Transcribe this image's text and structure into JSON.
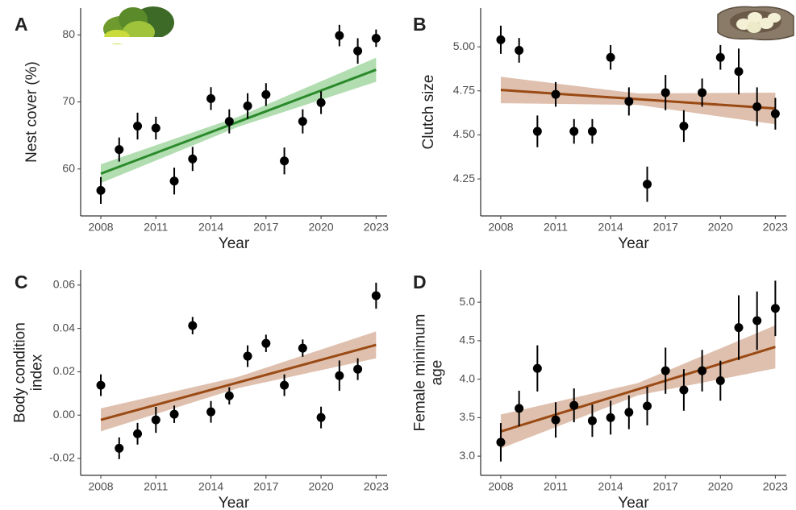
{
  "chart_data": [
    {
      "type": "scatter",
      "panel_label": "A",
      "xlabel": "Year",
      "ylabel": [
        "Nest cover (%)"
      ],
      "x": [
        2008,
        2009,
        2010,
        2011,
        2012,
        2013,
        2014,
        2015,
        2016,
        2017,
        2018,
        2019,
        2020,
        2021,
        2022,
        2023
      ],
      "values": [
        56.8,
        62.9,
        66.4,
        66.1,
        58.2,
        61.5,
        70.5,
        67.1,
        69.4,
        71.1,
        61.2,
        67.1,
        69.9,
        79.9,
        77.6,
        79.5
      ],
      "errors": [
        2.0,
        1.8,
        2.0,
        1.7,
        2.0,
        1.8,
        1.7,
        1.8,
        1.9,
        1.7,
        2.0,
        1.8,
        1.7,
        1.6,
        1.9,
        1.3
      ],
      "color": "#000000",
      "fit": {
        "x": [
          2008,
          2015.5,
          2023
        ],
        "y": [
          59.3,
          67.05,
          74.8
        ],
        "lower": [
          57.9,
          66.3,
          73.0
        ],
        "upper": [
          60.7,
          67.8,
          76.6
        ],
        "color": "#2a8a2a",
        "band_color": "#a3d7a3"
      },
      "xlim": [
        2006.9,
        2023.6
      ],
      "ylim": [
        53,
        84
      ],
      "xticks": [
        2008,
        2011,
        2014,
        2017,
        2020,
        2023
      ],
      "yticks": [
        60,
        70,
        80
      ]
    },
    {
      "type": "scatter",
      "panel_label": "B",
      "xlabel": "Year",
      "ylabel": [
        "Clutch size"
      ],
      "x": [
        2008,
        2009,
        2010,
        2011,
        2012,
        2013,
        2014,
        2015,
        2016,
        2017,
        2018,
        2019,
        2020,
        2021,
        2022,
        2023
      ],
      "values": [
        5.04,
        4.98,
        4.52,
        4.73,
        4.52,
        4.52,
        4.94,
        4.69,
        4.22,
        4.74,
        4.55,
        4.74,
        4.94,
        4.86,
        4.66,
        4.62
      ],
      "errors": [
        0.08,
        0.07,
        0.09,
        0.07,
        0.07,
        0.07,
        0.07,
        0.08,
        0.1,
        0.1,
        0.09,
        0.08,
        0.07,
        0.13,
        0.11,
        0.09
      ],
      "color": "#000000",
      "fit": {
        "x": [
          2008,
          2015.5,
          2023
        ],
        "y": [
          4.755,
          4.7025,
          4.65
        ],
        "lower": [
          4.68,
          4.67,
          4.56
        ],
        "upper": [
          4.83,
          4.735,
          4.74
        ],
        "color": "#9a4a14",
        "band_color": "#d9b5a0"
      },
      "xlim": [
        2006.9,
        2023.6
      ],
      "ylim": [
        4.04,
        5.22
      ],
      "xticks": [
        2008,
        2011,
        2014,
        2017,
        2020,
        2023
      ],
      "yticks": [
        {
          "value": 4.25,
          "label": "4.25"
        },
        {
          "value": 4.5,
          "label": "4.50"
        },
        {
          "value": 4.75,
          "label": "4.75"
        },
        {
          "value": 5,
          "label": "5.00"
        }
      ]
    },
    {
      "type": "scatter",
      "panel_label": "C",
      "xlabel": "Year",
      "ylabel": [
        "Body condition",
        "index"
      ],
      "x": [
        2008,
        2009,
        2010,
        2011,
        2012,
        2013,
        2014,
        2015,
        2016,
        2017,
        2018,
        2019,
        2020,
        2021,
        2022,
        2023
      ],
      "values": [
        0.0138,
        -0.0153,
        -0.0086,
        -0.0022,
        0.0004,
        0.0413,
        0.0015,
        0.0089,
        0.0272,
        0.0331,
        0.0138,
        0.0309,
        -0.0011,
        0.0182,
        0.0212,
        0.0551
      ],
      "errors": [
        0.005,
        0.005,
        0.005,
        0.006,
        0.004,
        0.004,
        0.005,
        0.004,
        0.005,
        0.004,
        0.005,
        0.004,
        0.005,
        0.007,
        0.005,
        0.006
      ],
      "color": "#000000",
      "fit": {
        "x": [
          2008,
          2015.5,
          2023
        ],
        "y": [
          -0.0022,
          0.0151,
          0.0324
        ],
        "lower": [
          -0.0075,
          0.0125,
          0.0262
        ],
        "upper": [
          0.0031,
          0.0177,
          0.0386
        ],
        "color": "#9a4a14",
        "band_color": "#d9b5a0"
      },
      "xlim": [
        2006.9,
        2023.6
      ],
      "ylim": [
        -0.0278,
        0.067
      ],
      "xticks": [
        2008,
        2011,
        2014,
        2017,
        2020,
        2023
      ],
      "yticks": [
        {
          "value": -0.02,
          "label": "-0.02"
        },
        {
          "value": 0,
          "label": "0.00"
        },
        {
          "value": 0.02,
          "label": "0.02"
        },
        {
          "value": 0.04,
          "label": "0.04"
        },
        {
          "value": 0.06,
          "label": "0.06"
        }
      ]
    },
    {
      "type": "scatter",
      "panel_label": "D",
      "xlabel": "Year",
      "ylabel": [
        "Female minimum",
        "age"
      ],
      "x": [
        2008,
        2009,
        2010,
        2011,
        2012,
        2013,
        2014,
        2015,
        2016,
        2017,
        2018,
        2019,
        2020,
        2021,
        2022,
        2023
      ],
      "values": [
        3.18,
        3.62,
        4.14,
        3.47,
        3.66,
        3.46,
        3.5,
        3.57,
        3.65,
        4.11,
        3.86,
        4.11,
        3.98,
        4.67,
        4.76,
        4.92
      ],
      "errors": [
        0.25,
        0.23,
        0.3,
        0.23,
        0.22,
        0.21,
        0.22,
        0.22,
        0.25,
        0.3,
        0.27,
        0.27,
        0.26,
        0.42,
        0.38,
        0.36
      ],
      "color": "#000000",
      "fit": {
        "x": [
          2008,
          2015.5,
          2023
        ],
        "y": [
          3.32,
          3.87,
          4.42
        ],
        "lower": [
          3.1,
          3.79,
          4.14
        ],
        "upper": [
          3.54,
          3.95,
          4.7
        ],
        "color": "#9a4a14",
        "band_color": "#d9b5a0"
      },
      "xlim": [
        2006.9,
        2023.6
      ],
      "ylim": [
        2.75,
        5.42
      ],
      "xticks": [
        2008,
        2011,
        2014,
        2017,
        2020,
        2023
      ],
      "yticks": [
        {
          "value": 3,
          "label": "3.0"
        },
        {
          "value": 3.5,
          "label": "3.5"
        },
        {
          "value": 4,
          "label": "4.0"
        },
        {
          "value": 4.5,
          "label": "4.5"
        },
        {
          "value": 5,
          "label": "5.0"
        }
      ]
    }
  ]
}
